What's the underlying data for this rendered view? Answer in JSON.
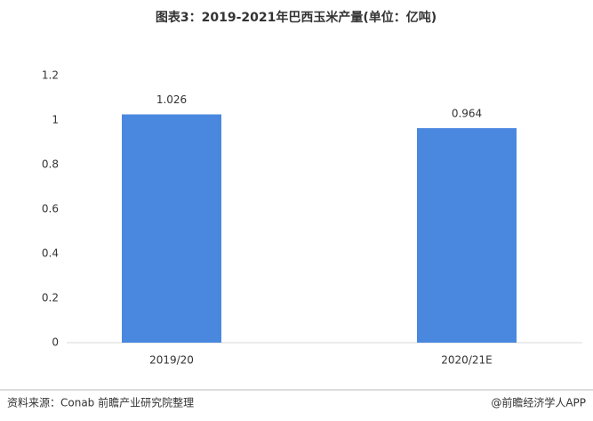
{
  "chart_data": {
    "type": "bar",
    "title": "图表3：2019-2021年巴西玉米产量(单位：亿吨)",
    "categories": [
      "2019/20",
      "2020/21E"
    ],
    "values": [
      1.026,
      0.964
    ],
    "color": "#4a88e0",
    "ylim": [
      0,
      1.2
    ],
    "yticks": [
      0,
      0.2,
      0.4,
      0.6,
      0.8,
      1,
      1.2
    ],
    "grid": false,
    "source": "资料来源：Conab 前瞻产业研究院整理",
    "credit": "@前瞻经济学人APP"
  }
}
